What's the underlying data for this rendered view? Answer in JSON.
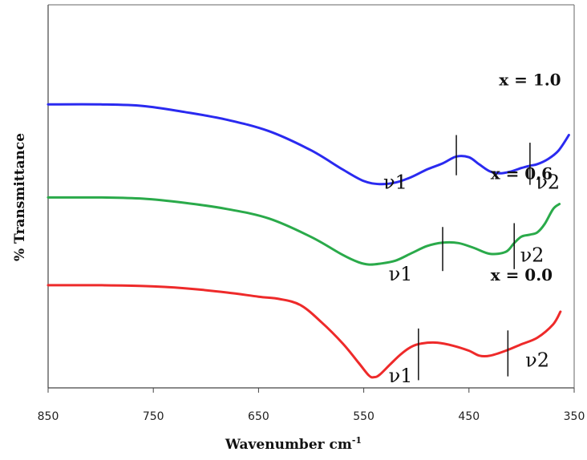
{
  "chart_data": {
    "type": "line",
    "xlabel": "Wavenumber cm",
    "xlabel_superscript": "-1",
    "ylabel": "% Transmittance",
    "xlim": [
      850,
      350
    ],
    "x_reversed": true,
    "ylim": [
      0,
      100
    ],
    "xticks": [
      "850",
      "750",
      "650",
      "550",
      "450",
      "350"
    ],
    "grid": false,
    "series": [
      {
        "name": "x = 1.0",
        "color": "#2a2af0",
        "x": [
          850,
          800,
          760,
          720,
          680,
          640,
          600,
          570,
          550,
          535,
          520,
          505,
          490,
          475,
          462,
          450,
          440,
          430,
          420,
          410,
          400,
          392,
          385,
          375,
          365,
          355
        ],
        "y": [
          74,
          74,
          73.6,
          72,
          70,
          67,
          62,
          57,
          54,
          53.2,
          53.6,
          55,
          57,
          58.6,
          60.4,
          60.2,
          58.3,
          56.5,
          56,
          56.5,
          57.4,
          58,
          58.4,
          59.7,
          61.9,
          66
        ]
      },
      {
        "name": "x = 0.6",
        "color": "#2aaa4a",
        "x": [
          850,
          800,
          760,
          720,
          680,
          640,
          600,
          570,
          555,
          545,
          535,
          520,
          505,
          490,
          475,
          460,
          445,
          430,
          415,
          407,
          400,
          392,
          385,
          378,
          370,
          364
        ],
        "y": [
          49.7,
          49.7,
          49.4,
          48.3,
          46.7,
          44.2,
          39.4,
          34.7,
          32.8,
          32.2,
          32.4,
          33.2,
          35.1,
          37,
          37.9,
          37.8,
          36.5,
          35,
          35.5,
          37.8,
          39.5,
          40,
          40.6,
          42.8,
          46.7,
          48
        ]
      },
      {
        "name": "x = 0.0",
        "color": "#ee2a2a",
        "x": [
          850,
          800,
          760,
          720,
          680,
          650,
          630,
          610,
          590,
          570,
          555,
          545,
          540,
          535,
          525,
          515,
          505,
          495,
          480,
          465,
          450,
          440,
          430,
          415,
          400,
          385,
          370,
          363
        ],
        "y": [
          26.8,
          26.8,
          26.6,
          26,
          24.9,
          23.8,
          23.2,
          21.6,
          17.1,
          11.6,
          6.6,
          3.2,
          2.8,
          3.4,
          6.1,
          8.7,
          10.7,
          11.6,
          11.8,
          11,
          9.7,
          8.4,
          8.4,
          9.7,
          11.4,
          13.1,
          16.6,
          19.9
        ]
      }
    ],
    "curve_labels": [
      {
        "text": "x = 1.0",
        "wavenumber": 392,
        "y": 79
      },
      {
        "text": "x = 0.6",
        "wavenumber": 400,
        "y": 54.5
      },
      {
        "text": "x = 0.0",
        "wavenumber": 400,
        "y": 28
      }
    ],
    "band_markers": [
      {
        "series": 0,
        "text": "ν1",
        "wavenumber": 462,
        "line_top": 66,
        "line_bottom": 55.5,
        "label_wavenumber": 520,
        "label_y": 52
      },
      {
        "series": 0,
        "text": "ν2",
        "wavenumber": 392,
        "line_top": 64,
        "line_bottom": 53,
        "label_wavenumber": 375,
        "label_y": 52
      },
      {
        "series": 1,
        "text": "ν1",
        "wavenumber": 475,
        "line_top": 42,
        "line_bottom": 30.5,
        "label_wavenumber": 515,
        "label_y": 28
      },
      {
        "series": 1,
        "text": "ν2",
        "wavenumber": 407,
        "line_top": 43,
        "line_bottom": 31,
        "label_wavenumber": 390,
        "label_y": 33
      },
      {
        "series": 2,
        "text": "ν1",
        "wavenumber": 498,
        "line_top": 15.5,
        "line_bottom": 2,
        "label_wavenumber": 515,
        "label_y": 1.5
      },
      {
        "series": 2,
        "text": "ν2",
        "wavenumber": 413,
        "line_top": 15,
        "line_bottom": 3,
        "label_wavenumber": 385,
        "label_y": 5.5
      }
    ]
  }
}
